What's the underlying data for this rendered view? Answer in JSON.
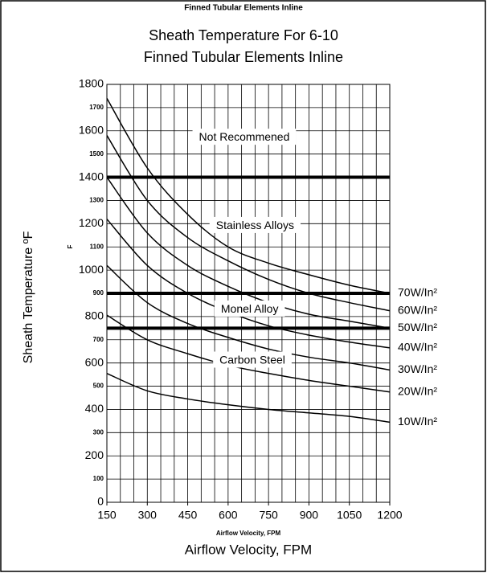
{
  "chart_data": {
    "type": "line",
    "header": "Finned Tubular Elements Inline",
    "title": "Sheath Temperature For 6-10",
    "subtitle": "Finned Tubular Elements Inline",
    "y_label": "Sheath Temperature ºF",
    "y_label_small": "F",
    "x_label_small": "Airflow Velocity, FPM",
    "x_label": "Airflow Velocity, FPM",
    "x": [
      150,
      300,
      450,
      600,
      750,
      900,
      1050,
      1200
    ],
    "series": [
      {
        "name": "70W/In²",
        "color": "#000000",
        "values": [
          1740,
          1440,
          1240,
          1100,
          1030,
          980,
          935,
          900
        ]
      },
      {
        "name": "60W/In²",
        "color": "#000000",
        "values": [
          1580,
          1300,
          1140,
          1040,
          960,
          900,
          860,
          825
        ]
      },
      {
        "name": "50W/In²",
        "color": "#000000",
        "values": [
          1400,
          1160,
          1020,
          930,
          860,
          810,
          780,
          750
        ]
      },
      {
        "name": "40W/In²",
        "color": "#000000",
        "values": [
          1220,
          1020,
          900,
          820,
          760,
          720,
          690,
          665
        ]
      },
      {
        "name": "30W/In²",
        "color": "#000000",
        "values": [
          1020,
          860,
          770,
          710,
          660,
          625,
          600,
          570
        ]
      },
      {
        "name": "20W/In²",
        "color": "#000000",
        "values": [
          806,
          700,
          640,
          590,
          555,
          525,
          500,
          475
        ]
      },
      {
        "name": "10W/In²",
        "color": "#000000",
        "values": [
          555,
          480,
          445,
          420,
          400,
          385,
          370,
          345
        ]
      }
    ],
    "reference_lines": [
      1400,
      900,
      750
    ],
    "annotations": [
      {
        "text": "Not Recommened",
        "x": 660,
        "y": 1570
      },
      {
        "text": "Stainless Alloys",
        "x": 700,
        "y": 1190
      },
      {
        "text": "Monel Alloy",
        "x": 680,
        "y": 830
      },
      {
        "text": "Carbon Steel",
        "x": 690,
        "y": 610
      }
    ],
    "xlim": [
      150,
      1200
    ],
    "xticks": [
      150,
      300,
      450,
      600,
      750,
      900,
      1050,
      1200
    ],
    "ylim": [
      0,
      1800
    ],
    "yticks": [
      0,
      100,
      200,
      300,
      400,
      500,
      600,
      700,
      800,
      900,
      1000,
      1100,
      1200,
      1300,
      1400,
      1500,
      1600,
      1700,
      1800
    ],
    "grid": true
  }
}
